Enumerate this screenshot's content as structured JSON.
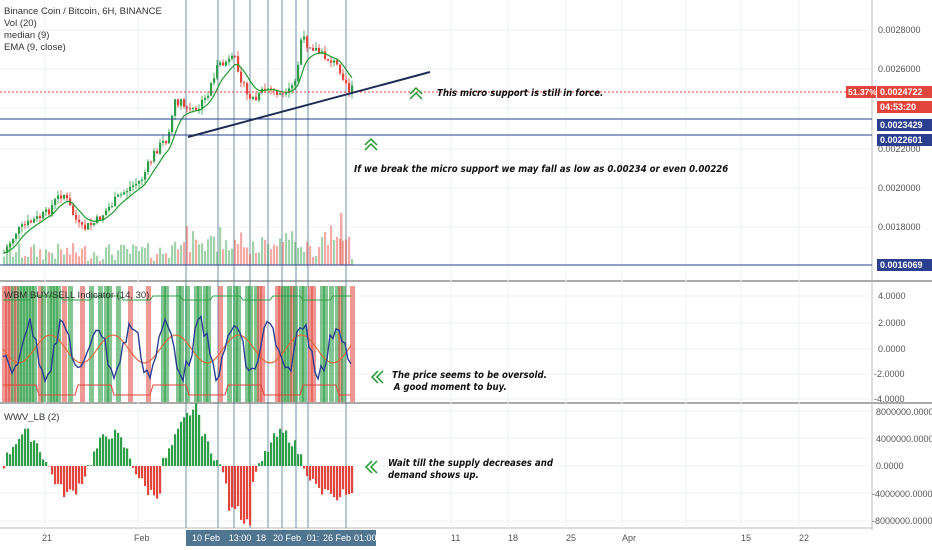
{
  "legend": {
    "symbol": "Binance Coin / Bitcoin, 6H, BINANCE",
    "vol": "Vol (20)",
    "median": "median (9)",
    "ema": "EMA (9, close)",
    "wbm": "WBM BUY/SELL Indicator (14, 30)",
    "wwv": "WWV_LB (2)"
  },
  "price_axis": [
    "0.0028000",
    "0.0026000",
    "0.0022000",
    "0.0020000",
    "0.0018000"
  ],
  "price_tags": {
    "pct": "51.37%",
    "last": "0.0024722",
    "countdown": "04:53:20",
    "level1": "0.0023429",
    "level2": "0.0022601",
    "level3": "0.0016069"
  },
  "wbm_axis": [
    "4.0000",
    "2.0000",
    "0.0000",
    "-2.0000",
    "-4.0000"
  ],
  "wwv_axis": [
    "8000000.0000",
    "4000000.0000",
    "0.0000",
    "-4000000.0000",
    "-8000000.0000"
  ],
  "annotations": {
    "micro_support": "This micro support is still in force.",
    "break_support": "If we break the micro support we may fall as low as 0.00234 or even 0.00226",
    "oversold_1": "The price seems to be oversold.",
    "oversold_2": "A good moment to buy.",
    "supply_1": "Wait till the supply decreases and",
    "supply_2": "demand shows up."
  },
  "time_axis": {
    "labels": [
      "21",
      "Feb",
      "11",
      "18",
      "25",
      "Apr",
      "15",
      "22"
    ],
    "highlighted": [
      "10 Feb '19",
      "13:00",
      "18",
      "20 Feb '19",
      "01:",
      "26 Feb '19",
      "01:00"
    ]
  },
  "colors": {
    "up": "#2e9e48",
    "down": "#e2453c",
    "blue_line": "#2a3f8f",
    "ema": "#1f9b2e",
    "median": "#9e4b2f"
  }
}
